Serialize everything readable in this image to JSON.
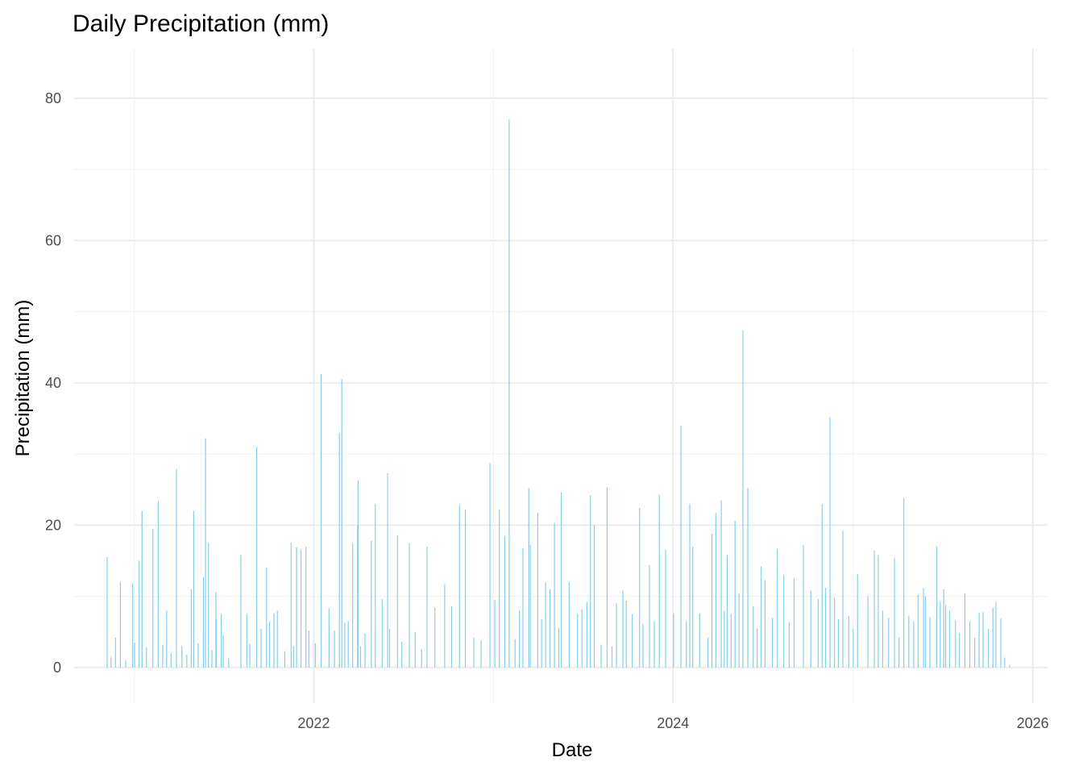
{
  "chart_data": {
    "type": "bar",
    "title": "Daily Precipitation (mm)",
    "xlabel": "Date",
    "ylabel": "Precipitation (mm)",
    "ylim": [
      -5,
      87
    ],
    "xlim": [
      "2020-09-01",
      "2026-01-31"
    ],
    "y_ticks": [
      0,
      20,
      40,
      60,
      80
    ],
    "y_tick_labels": [
      "0",
      "20",
      "40",
      "60",
      "80"
    ],
    "x_ticks": [
      "2022-01-01",
      "2024-01-01",
      "2026-01-01"
    ],
    "x_tick_labels": [
      "2022",
      "2024",
      "2026"
    ],
    "grid": true,
    "legend": "none",
    "bar_color": "#87CEEB",
    "series": [
      {
        "x": [
          "2020-11-07",
          "2020-11-24",
          "2020-12-04",
          "2020-12-29",
          "2021-01-11",
          "2021-01-17",
          "2021-02-08",
          "2021-02-19",
          "2021-03-08",
          "2021-03-28",
          "2021-04-27",
          "2021-05-02",
          "2021-05-22",
          "2021-05-26",
          "2021-06-01",
          "2021-06-16",
          "2021-06-17",
          "2021-06-27",
          "2021-08-06",
          "2021-08-18",
          "2021-09-07",
          "2021-09-27",
          "2021-10-12",
          "2021-10-19",
          "2021-11-16",
          "2021-11-27",
          "2021-12-06",
          "2021-12-16",
          "2022-01-16",
          "2022-02-22",
          "2022-02-27",
          "2022-03-12",
          "2022-03-21",
          "2022-03-31",
          "2022-04-01",
          "2022-04-28",
          "2022-05-06",
          "2022-05-31",
          "2022-06-20",
          "2022-07-14",
          "2022-08-19",
          "2022-09-24",
          "2022-10-24",
          "2022-11-05",
          "2022-12-25",
          "2023-01-13",
          "2023-01-24",
          "2023-02-02",
          "2023-03-02",
          "2023-03-14",
          "2023-03-17",
          "2023-04-01",
          "2023-04-17",
          "2023-05-05",
          "2023-05-19",
          "2023-06-04",
          "2023-07-17",
          "2023-07-25",
          "2023-08-20",
          "2023-09-08",
          "2023-09-21",
          "2023-10-25",
          "2023-11-14",
          "2023-12-04",
          "2023-12-17",
          "2024-01-17",
          "2024-02-04",
          "2024-02-10",
          "2024-03-20",
          "2024-03-28",
          "2024-04-08",
          "2024-04-20",
          "2024-05-06",
          "2024-05-22",
          "2024-06-01",
          "2024-06-28",
          "2024-07-06",
          "2024-07-31",
          "2024-08-13",
          "2024-09-22",
          "2024-10-30",
          "2024-11-15",
          "2024-12-11",
          "2025-01-10",
          "2025-02-13",
          "2025-02-21",
          "2025-03-26",
          "2025-04-14",
          "2025-04-24",
          "2025-05-04",
          "2025-05-24",
          "2025-05-28",
          "2025-06-06",
          "2025-06-20",
          "2025-07-04",
          "2025-07-16",
          "2025-08-16",
          "2025-09-22",
          "2025-10-12",
          "2025-10-18",
          "2025-10-28"
        ],
        "values": [
          15.5,
          4.2,
          12.0,
          11.8,
          15.0,
          22.0,
          19.5,
          23.4,
          8.0,
          27.9,
          11.0,
          22.0,
          12.7,
          32.2,
          17.5,
          10.6,
          6.8,
          7.5,
          15.8,
          7.5,
          31.0,
          14.0,
          7.6,
          8.0,
          17.5,
          16.9,
          16.5,
          17.0,
          41.2,
          33.0,
          40.5,
          6.5,
          17.5,
          20.0,
          26.3,
          17.8,
          23.0,
          27.3,
          18.6,
          17.5,
          17.0,
          11.7,
          22.8,
          22.2,
          28.7,
          22.2,
          18.5,
          77.0,
          16.8,
          25.2,
          17.2,
          21.7,
          12.0,
          20.3,
          24.6,
          12.0,
          24.2,
          20.0,
          25.3,
          9.0,
          10.8,
          22.4,
          14.4,
          24.3,
          16.6,
          34.0,
          23.0,
          17.0,
          18.8,
          21.7,
          23.5,
          15.8,
          20.6,
          47.4,
          25.2,
          14.2,
          12.3,
          16.7,
          13.0,
          17.2,
          23.0,
          35.2,
          19.2,
          13.1,
          16.4,
          15.8,
          15.3,
          23.8,
          7.3,
          6.5,
          11.2,
          10.0,
          7.1,
          17.0,
          11.0,
          8.0,
          10.4,
          7.8,
          8.4,
          9.2,
          6.9
        ]
      },
      {
        "x": [
          "2020-11-15",
          "2020-12-15",
          "2021-01-02",
          "2021-01-26",
          "2021-02-28",
          "2021-03-17",
          "2021-04-08",
          "2021-04-18",
          "2021-05-11",
          "2021-06-08",
          "2021-07-01",
          "2021-07-12",
          "2021-08-24",
          "2021-09-16",
          "2021-10-03",
          "2021-11-03",
          "2021-11-21",
          "2021-12-22",
          "2022-01-04",
          "2022-02-01",
          "2022-02-12",
          "2022-03-05",
          "2022-04-06",
          "2022-04-15",
          "2022-05-20",
          "2022-06-04",
          "2022-06-29",
          "2022-07-26",
          "2022-08-08",
          "2022-09-04",
          "2022-10-08",
          "2022-11-22",
          "2022-12-07",
          "2023-01-04",
          "2023-02-14",
          "2023-02-23",
          "2023-04-09",
          "2023-04-26",
          "2023-05-14",
          "2023-06-21",
          "2023-06-30",
          "2023-07-10",
          "2023-08-08",
          "2023-08-30",
          "2023-09-28",
          "2023-10-10",
          "2023-11-01",
          "2023-11-24",
          "2024-01-02",
          "2024-01-28",
          "2024-02-24",
          "2024-03-12",
          "2024-04-14",
          "2024-04-28",
          "2024-05-14",
          "2024-06-12",
          "2024-06-20",
          "2024-07-21",
          "2024-08-24",
          "2024-09-03",
          "2024-10-07",
          "2024-10-22",
          "2024-11-06",
          "2024-11-24",
          "2024-12-02",
          "2024-12-23",
          "2025-01-01",
          "2025-01-31",
          "2025-03-02",
          "2025-03-14",
          "2025-04-04",
          "2025-05-13",
          "2025-06-27",
          "2025-07-08",
          "2025-07-28",
          "2025-08-05",
          "2025-08-26",
          "2025-09-05",
          "2025-09-14",
          "2025-10-03",
          "2025-11-05",
          "2025-11-15"
        ],
        "values": [
          1.5,
          1.0,
          3.5,
          2.8,
          3.2,
          2.0,
          3.0,
          1.8,
          3.4,
          2.5,
          4.5,
          1.3,
          3.3,
          5.4,
          6.5,
          2.3,
          3.0,
          5.2,
          3.4,
          8.3,
          5.2,
          6.3,
          3.0,
          4.8,
          9.6,
          5.4,
          3.6,
          5.0,
          2.6,
          8.4,
          8.6,
          4.2,
          3.8,
          9.5,
          4.0,
          8.0,
          6.8,
          11.0,
          5.6,
          7.5,
          8.2,
          9.2,
          3.2,
          3.0,
          9.4,
          7.5,
          6.2,
          6.5,
          7.6,
          6.5,
          7.6,
          4.2,
          8.0,
          7.5,
          10.4,
          8.6,
          5.5,
          7.0,
          6.4,
          12.5,
          10.8,
          9.6,
          11.2,
          9.8,
          6.8,
          7.2,
          5.4,
          10.0,
          8.0,
          7.0,
          4.2,
          10.2,
          9.2,
          8.8,
          6.6,
          4.8,
          6.5,
          4.2,
          7.7,
          5.4,
          1.4,
          0.4
        ]
      }
    ]
  }
}
